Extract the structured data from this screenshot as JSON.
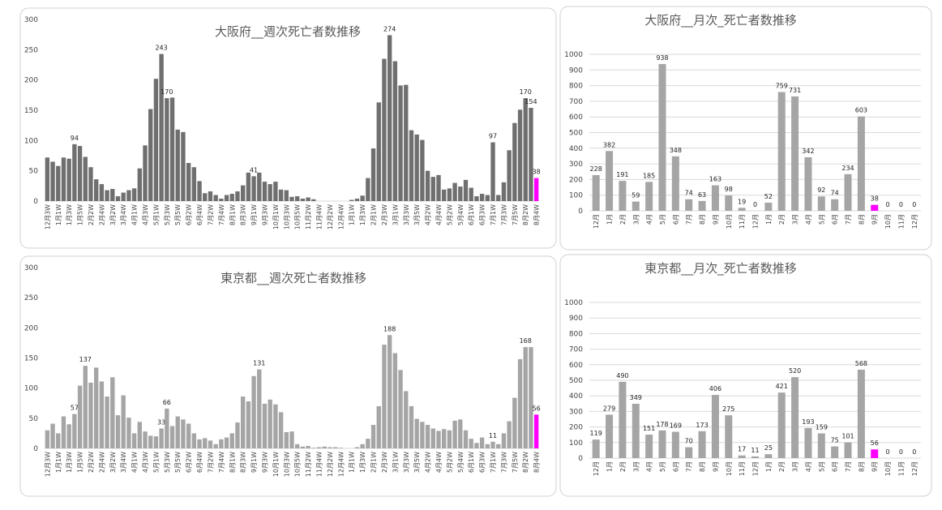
{
  "chart_data": [
    {
      "type": "bar",
      "title": "大阪府__週次死亡者数推移",
      "color": "#6f6f6f",
      "highlight_index": 90,
      "highlight_color": "#ff00ff",
      "grid": false,
      "categories": [
        "12月3W",
        null,
        "1月1W",
        null,
        "1月3W",
        null,
        "1月5W",
        null,
        "2月2W",
        null,
        "2月4W",
        null,
        "3月2W",
        null,
        "3月4W",
        null,
        "4月1W",
        null,
        "4月3W",
        null,
        "5月1W",
        null,
        "5月3W",
        null,
        "5月5W",
        null,
        "6月2W",
        null,
        "6月4W",
        null,
        "7月2W",
        null,
        "7月4W",
        null,
        "8月1W",
        null,
        "8月3W",
        null,
        "9月1W",
        null,
        "9月3W",
        null,
        "10月1W",
        null,
        "10月3W",
        null,
        "10月5W",
        null,
        "11月2W",
        null,
        "11月4W",
        null,
        "12月2W",
        null,
        "12月4W",
        null,
        "1月1W",
        null,
        "1月3W",
        null,
        "2月1W",
        null,
        "2月3W",
        null,
        "3月1W",
        null,
        "3月3W",
        null,
        "3月5W",
        null,
        "4月2W",
        null,
        "4月4W",
        null,
        "5月2W",
        null,
        "5月4W",
        null,
        "6月1W",
        null,
        "6月3W",
        null,
        "7月1W",
        null,
        "7月3W",
        null,
        "7月5W",
        null,
        "8月2W",
        null,
        "8月4W"
      ],
      "values": [
        72,
        65,
        58,
        72,
        70,
        94,
        91,
        73,
        56,
        36,
        28,
        18,
        20,
        8,
        14,
        18,
        21,
        54,
        92,
        152,
        202,
        243,
        170,
        171,
        118,
        114,
        63,
        56,
        33,
        13,
        16,
        10,
        4,
        10,
        12,
        16,
        26,
        47,
        41,
        47,
        32,
        28,
        32,
        19,
        18,
        7,
        8,
        4,
        6,
        3,
        0,
        0,
        0,
        0,
        0,
        0,
        2,
        4,
        9,
        38,
        87,
        163,
        235,
        274,
        231,
        191,
        192,
        117,
        110,
        101,
        50,
        40,
        43,
        19,
        21,
        30,
        24,
        35,
        22,
        8,
        12,
        10,
        97,
        10,
        31,
        84,
        129,
        151,
        170,
        154,
        38
      ],
      "show_labels": [
        5,
        21,
        22,
        38,
        63,
        82,
        88,
        89,
        90
      ],
      "ylim": [
        0,
        300
      ],
      "yticks": [
        0,
        50,
        100,
        150,
        200,
        250,
        300
      ]
    },
    {
      "type": "bar",
      "title": "大阪府__月次_死亡者数推移",
      "color": "#a5a5a5",
      "highlight_index": 21,
      "highlight_color": "#ff00ff",
      "grid": true,
      "categories": [
        "12月",
        "1月",
        "2月",
        "3月",
        "4月",
        "5月",
        "6月",
        "7月",
        "8月",
        "9月",
        "10月",
        "11月",
        "12月",
        "1月",
        "2月",
        "3月",
        "4月",
        "5月",
        "6月",
        "7月",
        "8月",
        "9月",
        "10月",
        "11月",
        "12月"
      ],
      "values": [
        228,
        382,
        191,
        59,
        185,
        938,
        348,
        74,
        63,
        163,
        98,
        19,
        0,
        52,
        759,
        731,
        342,
        92,
        74,
        234,
        603,
        38,
        0,
        0,
        0
      ],
      "show_labels": true,
      "ylim": [
        0,
        1000
      ],
      "yticks": [
        0,
        100,
        200,
        300,
        400,
        500,
        600,
        700,
        800,
        900,
        1000
      ]
    },
    {
      "type": "bar",
      "title": "東京都__週次死亡者数推移",
      "color": "#a5a5a5",
      "highlight_index": 90,
      "highlight_color": "#ff00ff",
      "grid": false,
      "categories": [
        "12月3W",
        null,
        "1月1W",
        null,
        "1月3W",
        null,
        "1月5W",
        null,
        "2月2W",
        null,
        "2月4W",
        null,
        "3月2W",
        null,
        "3月4W",
        null,
        "4月1W",
        null,
        "4月3W",
        null,
        "5月1W",
        null,
        "5月3W",
        null,
        "5月5W",
        null,
        "6月2W",
        null,
        "6月4W",
        null,
        "7月2W",
        null,
        "7月4W",
        null,
        "8月1W",
        null,
        "8月3W",
        null,
        "9月1W",
        null,
        "9月3W",
        null,
        "10月1W",
        null,
        "10月3W",
        null,
        "10月5W",
        null,
        "11月2W",
        null,
        "11月4W",
        null,
        "12月2W",
        null,
        "12月4W",
        null,
        "1月1W",
        null,
        "1月3W",
        null,
        "2月1W",
        null,
        "2月3W",
        null,
        "3月1W",
        null,
        "3月3W",
        null,
        "3月5W",
        null,
        "4月2W",
        null,
        "4月4W",
        null,
        "5月2W",
        null,
        "5月4W",
        null,
        "6月1W",
        null,
        "6月3W",
        null,
        "7月1W",
        null,
        "7月3W",
        null,
        "7月5W",
        null,
        "8月2W",
        null,
        "8月4W"
      ],
      "values": [
        30,
        41,
        25,
        53,
        40,
        57,
        104,
        137,
        109,
        134,
        111,
        86,
        118,
        55,
        88,
        51,
        25,
        44,
        28,
        21,
        20,
        33,
        66,
        37,
        53,
        48,
        41,
        25,
        15,
        17,
        13,
        7,
        15,
        18,
        25,
        43,
        86,
        78,
        120,
        131,
        74,
        81,
        73,
        60,
        27,
        28,
        7,
        3,
        4,
        1,
        2,
        3,
        2,
        2,
        1,
        0,
        0,
        2,
        7,
        16,
        39,
        70,
        172,
        188,
        158,
        130,
        95,
        70,
        49,
        44,
        39,
        33,
        29,
        32,
        30,
        46,
        48,
        30,
        16,
        9,
        18,
        7,
        11,
        7,
        25,
        45,
        84,
        148,
        168,
        168,
        56
      ],
      "show_labels": [
        5,
        7,
        21,
        22,
        39,
        63,
        82,
        88,
        90
      ],
      "ylim": [
        0,
        300
      ],
      "yticks": [
        0,
        50,
        100,
        150,
        200,
        250,
        300
      ]
    },
    {
      "type": "bar",
      "title": "東京都__月次_死亡者数推移",
      "color": "#a5a5a5",
      "highlight_index": 21,
      "highlight_color": "#ff00ff",
      "grid": true,
      "categories": [
        "12月",
        "1月",
        "2月",
        "3月",
        "4月",
        "5月",
        "6月",
        "7月",
        "8月",
        "9月",
        "10月",
        "11月",
        "12月",
        "1月",
        "2月",
        "3月",
        "4月",
        "5月",
        "6月",
        "7月",
        "8月",
        "9月",
        "10月",
        "11月",
        "12月"
      ],
      "values": [
        119,
        279,
        490,
        349,
        151,
        178,
        169,
        70,
        173,
        406,
        275,
        17,
        11,
        25,
        421,
        520,
        193,
        159,
        75,
        101,
        568,
        56,
        0,
        0,
        0
      ],
      "show_labels": true,
      "ylim": [
        0,
        1000
      ],
      "yticks": [
        0,
        100,
        200,
        300,
        400,
        500,
        600,
        700,
        800,
        900,
        1000
      ]
    }
  ]
}
